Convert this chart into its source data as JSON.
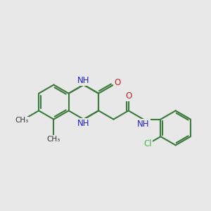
{
  "background_color": "#e8e8e8",
  "bond_color": "#3d7a3d",
  "bond_width": 1.5,
  "N_color": "#2020cc",
  "O_color": "#cc2020",
  "Cl_color": "#44bb44",
  "figsize": [
    3.0,
    3.0
  ],
  "dpi": 100,
  "xlim": [
    0,
    12
  ],
  "ylim": [
    0,
    12
  ]
}
